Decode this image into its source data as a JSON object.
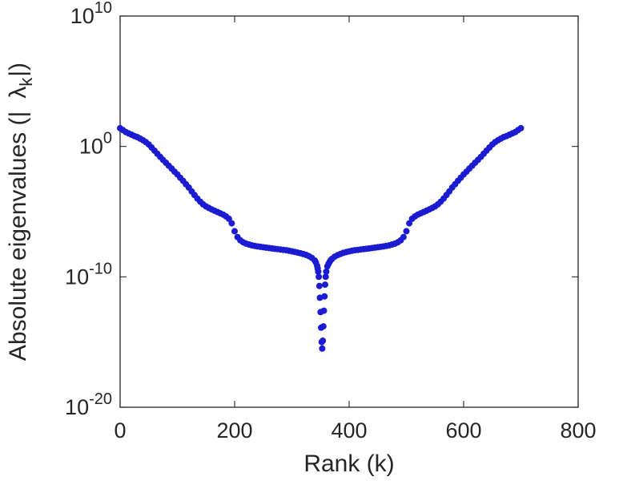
{
  "figure": {
    "background": "#ffffff"
  },
  "chart_data": {
    "type": "scatter",
    "title": "",
    "xlabel": "Rank (k)",
    "ylabel": {
      "prefix": "Absolute eigenvalues (|",
      "symbol": "λ",
      "subscript": "k",
      "suffix": "|)"
    },
    "x_axis": {
      "scale": "linear",
      "lim": [
        0,
        800
      ],
      "ticks": [
        0,
        200,
        400,
        600,
        800
      ]
    },
    "y_axis": {
      "scale": "log10",
      "exp_lim": [
        -20,
        10
      ],
      "tick_base": "10",
      "tick_exponents": [
        10,
        0,
        -10,
        -20
      ]
    },
    "grid": false,
    "legend": null,
    "axis_color": "#262626",
    "marker": {
      "shape": "circle",
      "color": "#1b1bd1",
      "radius_px": 4
    },
    "points_log10": [
      [
        0,
        1.4
      ],
      [
        5,
        1.25
      ],
      [
        10,
        1.1
      ],
      [
        15,
        1.0
      ],
      [
        20,
        0.9
      ],
      [
        25,
        0.8
      ],
      [
        30,
        0.72
      ],
      [
        35,
        0.6
      ],
      [
        40,
        0.48
      ],
      [
        45,
        0.33
      ],
      [
        50,
        0.15
      ],
      [
        55,
        -0.08
      ],
      [
        60,
        -0.32
      ],
      [
        65,
        -0.56
      ],
      [
        70,
        -0.8
      ],
      [
        75,
        -1.03
      ],
      [
        80,
        -1.25
      ],
      [
        85,
        -1.48
      ],
      [
        90,
        -1.7
      ],
      [
        95,
        -1.93
      ],
      [
        100,
        -2.15
      ],
      [
        105,
        -2.4
      ],
      [
        110,
        -2.64
      ],
      [
        115,
        -2.9
      ],
      [
        120,
        -3.15
      ],
      [
        125,
        -3.45
      ],
      [
        130,
        -3.73
      ],
      [
        135,
        -4.0
      ],
      [
        140,
        -4.24
      ],
      [
        145,
        -4.44
      ],
      [
        150,
        -4.6
      ],
      [
        155,
        -4.72
      ],
      [
        160,
        -4.83
      ],
      [
        165,
        -4.93
      ],
      [
        170,
        -5.03
      ],
      [
        175,
        -5.13
      ],
      [
        180,
        -5.23
      ],
      [
        185,
        -5.36
      ],
      [
        190,
        -5.55
      ],
      [
        195,
        -5.9
      ],
      [
        200,
        -6.5
      ],
      [
        205,
        -6.95
      ],
      [
        210,
        -7.2
      ],
      [
        215,
        -7.35
      ],
      [
        220,
        -7.45
      ],
      [
        225,
        -7.52
      ],
      [
        230,
        -7.58
      ],
      [
        235,
        -7.63
      ],
      [
        240,
        -7.67
      ],
      [
        245,
        -7.7
      ],
      [
        250,
        -7.73
      ],
      [
        255,
        -7.76
      ],
      [
        260,
        -7.79
      ],
      [
        265,
        -7.82
      ],
      [
        270,
        -7.85
      ],
      [
        275,
        -7.87
      ],
      [
        280,
        -7.9
      ],
      [
        285,
        -7.93
      ],
      [
        290,
        -7.96
      ],
      [
        295,
        -8.0
      ],
      [
        300,
        -8.04
      ],
      [
        305,
        -8.09
      ],
      [
        310,
        -8.14
      ],
      [
        315,
        -8.19
      ],
      [
        320,
        -8.25
      ],
      [
        325,
        -8.32
      ],
      [
        330,
        -8.42
      ],
      [
        335,
        -8.55
      ],
      [
        340,
        -8.75
      ],
      [
        342,
        -8.9
      ],
      [
        344,
        -9.15
      ],
      [
        345,
        -9.35
      ],
      [
        346,
        -9.6
      ],
      [
        347,
        -10.0
      ],
      [
        348,
        -10.7
      ],
      [
        349,
        -11.6
      ],
      [
        350,
        -12.7
      ],
      [
        351,
        -13.9
      ],
      [
        352,
        -15.0
      ],
      [
        353,
        -15.5
      ],
      [
        354,
        -14.9
      ],
      [
        355,
        -13.8
      ],
      [
        356,
        -12.6
      ],
      [
        357,
        -11.5
      ],
      [
        358,
        -10.6
      ],
      [
        359,
        -10.0
      ],
      [
        360,
        -9.6
      ],
      [
        362,
        -9.2
      ],
      [
        364,
        -9.0
      ],
      [
        366,
        -8.85
      ],
      [
        368,
        -8.72
      ],
      [
        370,
        -8.62
      ],
      [
        375,
        -8.45
      ],
      [
        380,
        -8.33
      ],
      [
        385,
        -8.24
      ],
      [
        390,
        -8.16
      ],
      [
        395,
        -8.1
      ],
      [
        400,
        -8.05
      ],
      [
        405,
        -8.0
      ],
      [
        410,
        -7.96
      ],
      [
        415,
        -7.93
      ],
      [
        420,
        -7.9
      ],
      [
        425,
        -7.87
      ],
      [
        430,
        -7.85
      ],
      [
        435,
        -7.82
      ],
      [
        440,
        -7.79
      ],
      [
        445,
        -7.76
      ],
      [
        450,
        -7.73
      ],
      [
        455,
        -7.7
      ],
      [
        460,
        -7.67
      ],
      [
        465,
        -7.63
      ],
      [
        470,
        -7.58
      ],
      [
        475,
        -7.52
      ],
      [
        480,
        -7.45
      ],
      [
        485,
        -7.35
      ],
      [
        490,
        -7.2
      ],
      [
        495,
        -6.95
      ],
      [
        500,
        -6.5
      ],
      [
        505,
        -5.9
      ],
      [
        510,
        -5.55
      ],
      [
        515,
        -5.36
      ],
      [
        520,
        -5.23
      ],
      [
        525,
        -5.13
      ],
      [
        530,
        -5.03
      ],
      [
        535,
        -4.93
      ],
      [
        540,
        -4.83
      ],
      [
        545,
        -4.72
      ],
      [
        550,
        -4.6
      ],
      [
        555,
        -4.44
      ],
      [
        560,
        -4.24
      ],
      [
        565,
        -4.0
      ],
      [
        570,
        -3.73
      ],
      [
        575,
        -3.45
      ],
      [
        580,
        -3.15
      ],
      [
        585,
        -2.9
      ],
      [
        590,
        -2.64
      ],
      [
        595,
        -2.4
      ],
      [
        600,
        -2.15
      ],
      [
        605,
        -1.93
      ],
      [
        610,
        -1.7
      ],
      [
        615,
        -1.48
      ],
      [
        620,
        -1.25
      ],
      [
        625,
        -1.03
      ],
      [
        630,
        -0.8
      ],
      [
        635,
        -0.56
      ],
      [
        640,
        -0.32
      ],
      [
        645,
        -0.08
      ],
      [
        650,
        0.15
      ],
      [
        655,
        0.33
      ],
      [
        660,
        0.48
      ],
      [
        665,
        0.6
      ],
      [
        670,
        0.72
      ],
      [
        675,
        0.8
      ],
      [
        680,
        0.9
      ],
      [
        685,
        1.0
      ],
      [
        690,
        1.1
      ],
      [
        695,
        1.25
      ],
      [
        700,
        1.4
      ]
    ]
  }
}
